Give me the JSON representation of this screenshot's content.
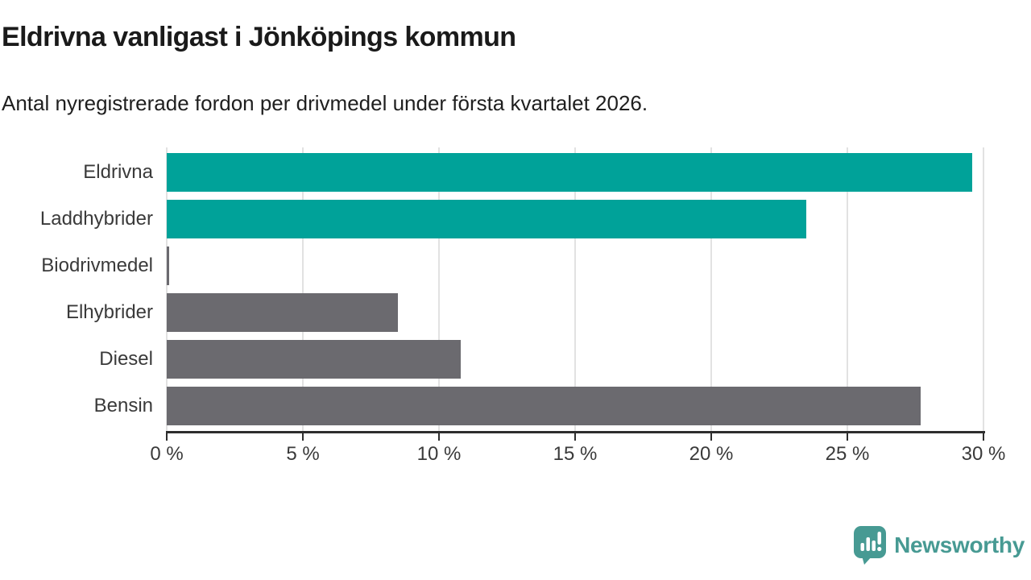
{
  "title": "Eldrivna vanligast i Jönköpings kommun",
  "subtitle": "Antal nyregistrerade fordon per drivmedel under första kvartalet 2026.",
  "chart_data": {
    "type": "bar",
    "orientation": "horizontal",
    "categories": [
      "Eldrivna",
      "Laddhybrider",
      "Biodrivmedel",
      "Elhybrider",
      "Diesel",
      "Bensin"
    ],
    "values": [
      29.6,
      23.5,
      0.1,
      8.5,
      10.8,
      27.7
    ],
    "unit": "%",
    "series_note": "single series, per-bar colors",
    "bar_colors": [
      "#00a299",
      "#00a299",
      "#6b6a6f",
      "#6b6a6f",
      "#6b6a6f",
      "#6b6a6f"
    ],
    "xlim": [
      0,
      30
    ],
    "x_tick_labels": [
      "0 %",
      "5 %",
      "10 %",
      "15 %",
      "20 %",
      "25 %",
      "30 %"
    ],
    "x_tick_values": [
      0,
      5,
      10,
      15,
      20,
      25,
      30
    ],
    "grid": "vertical",
    "legend": "none"
  },
  "colors": {
    "accent_teal": "#00a299",
    "muted_gray": "#6b6a6f",
    "gridline": "#e2e2e2",
    "axis": "#2e2e2e",
    "label_text": "#3a3a3a",
    "title_text": "#1a1a1a",
    "brand_teal": "#479a93"
  },
  "branding": {
    "logo_text": "Newsworthy"
  }
}
